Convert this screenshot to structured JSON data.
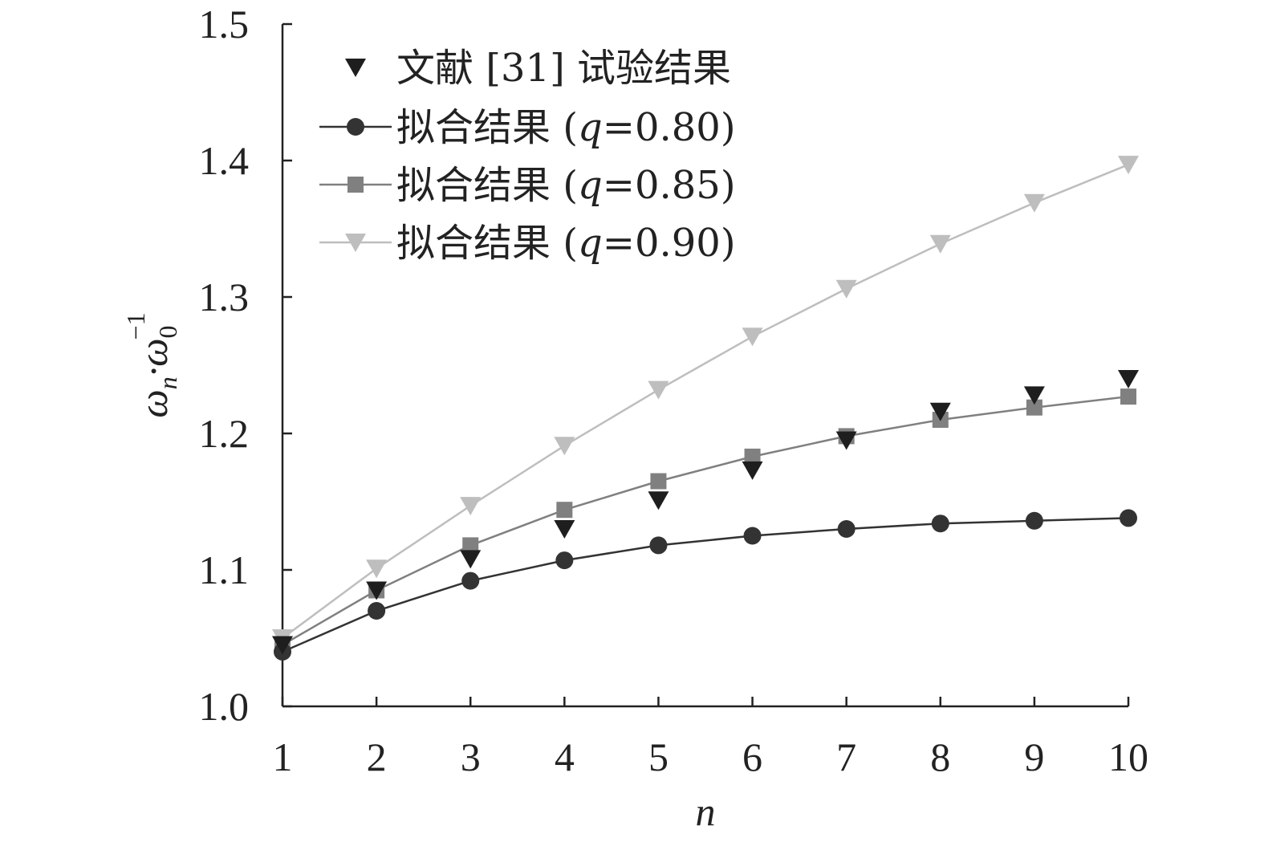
{
  "chart_data": {
    "type": "line",
    "title": "",
    "xlabel": "n",
    "ylabel": {
      "base": "ω",
      "sub1": "n",
      "mid": "·ω",
      "sub2": "0",
      "sup": "−1"
    },
    "xlim": [
      1,
      10
    ],
    "ylim": [
      1.0,
      1.5
    ],
    "x_ticks": [
      1,
      2,
      3,
      4,
      5,
      6,
      7,
      8,
      9,
      10
    ],
    "y_ticks": [
      "1.0",
      "1.1",
      "1.2",
      "1.3",
      "1.4",
      "1.5"
    ],
    "grid": false,
    "legend_position": "top-left",
    "x": [
      1,
      2,
      3,
      4,
      5,
      6,
      7,
      8,
      9,
      10
    ],
    "series": [
      {
        "name": "文献 [31] 试验结果",
        "legend_parts": [
          "文献 [31] 试验结果"
        ],
        "marker": "triangle-down",
        "line": false,
        "color": "#1e1e1e",
        "values": [
          1.045,
          1.085,
          1.108,
          1.13,
          1.151,
          1.173,
          1.195,
          1.216,
          1.228,
          1.24
        ]
      },
      {
        "name": "拟合结果 (q=0.80)",
        "legend_parts": [
          "拟合结果 (",
          "q",
          "=0.80)"
        ],
        "marker": "circle",
        "line": true,
        "color": "#333333",
        "values": [
          1.04,
          1.07,
          1.092,
          1.107,
          1.118,
          1.125,
          1.13,
          1.134,
          1.136,
          1.138
        ]
      },
      {
        "name": "拟合结果 (q=0.85)",
        "legend_parts": [
          "拟合结果 (",
          "q",
          "=0.85)"
        ],
        "marker": "square",
        "line": true,
        "color": "#808080",
        "values": [
          1.045,
          1.085,
          1.118,
          1.144,
          1.165,
          1.183,
          1.198,
          1.21,
          1.219,
          1.227
        ]
      },
      {
        "name": "拟合结果 (q=0.90)",
        "legend_parts": [
          "拟合结果 (",
          "q",
          "=0.90)"
        ],
        "marker": "triangle-down",
        "line": true,
        "color": "#bebebe",
        "values": [
          1.05,
          1.101,
          1.147,
          1.191,
          1.232,
          1.271,
          1.306,
          1.339,
          1.369,
          1.397
        ]
      }
    ]
  }
}
